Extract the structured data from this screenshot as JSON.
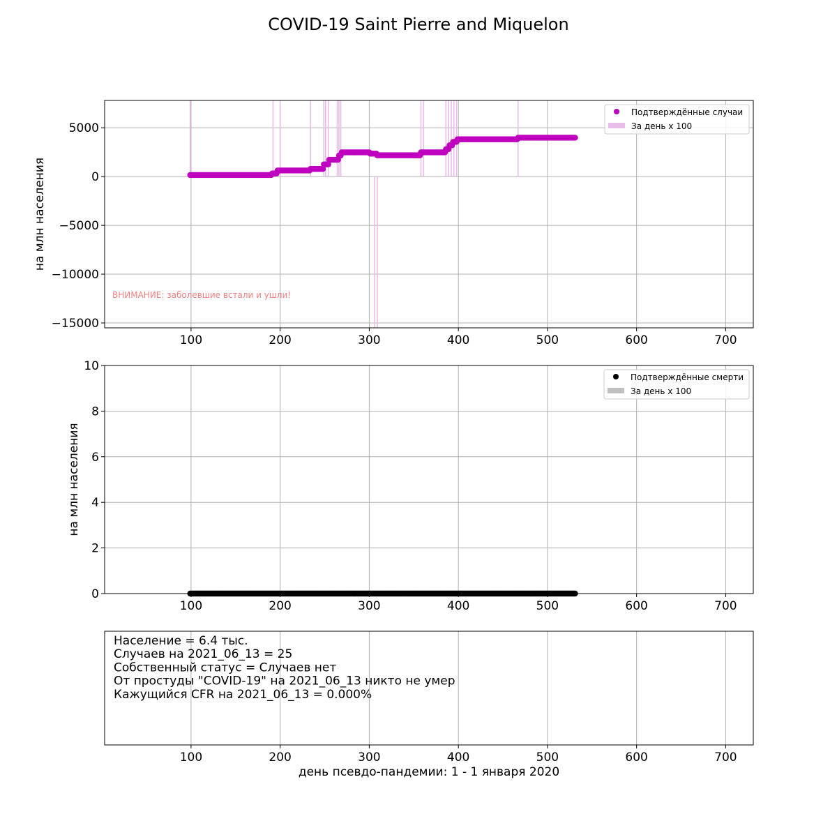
{
  "figure": {
    "title": "COVID-19 Saint Pierre and Miquelon",
    "xlabel": "день псевдо-пандемии: 1 - 1 января 2020"
  },
  "colors": {
    "cases": "#bf00bf",
    "cases_daily": "#e8bde8",
    "deaths": "#000000",
    "deaths_daily": "#bfbfbf",
    "warning": "#f08080",
    "grid": "#b0b0b0"
  },
  "chart_data": [
    {
      "type": "scatter",
      "ylabel": "на млн населения",
      "xlim": [
        3,
        731
      ],
      "ylim": [
        -15500,
        7800
      ],
      "xticks": [
        100,
        200,
        300,
        400,
        500,
        600,
        700
      ],
      "yticks": [
        5000,
        0,
        -5000,
        -10000,
        -15000
      ],
      "ytick_labels": [
        "5000",
        "0",
        "−5000",
        "−10000",
        "−15000"
      ],
      "grid": true,
      "legend_position": "top-right",
      "annotation": "ВНИМАНИЕ: заболевшие встали и ушли!",
      "series": [
        {
          "name": "Подтверждённые случаи",
          "kind": "points",
          "steps": [
            {
              "from": 99,
              "to": 190,
              "y": 160
            },
            {
              "from": 191,
              "to": 196,
              "y": 320
            },
            {
              "from": 197,
              "to": 233,
              "y": 620
            },
            {
              "from": 234,
              "to": 248,
              "y": 780
            },
            {
              "from": 249,
              "to": 254,
              "y": 1250
            },
            {
              "from": 255,
              "to": 265,
              "y": 1720
            },
            {
              "from": 266,
              "to": 268,
              "y": 2150
            },
            {
              "from": 269,
              "to": 300,
              "y": 2480
            },
            {
              "from": 301,
              "to": 308,
              "y": 2350
            },
            {
              "from": 309,
              "to": 357,
              "y": 2180
            },
            {
              "from": 358,
              "to": 385,
              "y": 2480
            },
            {
              "from": 386,
              "to": 389,
              "y": 2800
            },
            {
              "from": 390,
              "to": 393,
              "y": 3200
            },
            {
              "from": 394,
              "to": 398,
              "y": 3550
            },
            {
              "from": 399,
              "to": 466,
              "y": 3820
            },
            {
              "from": 467,
              "to": 531,
              "y": 3980
            }
          ]
        },
        {
          "name": "За день x 100",
          "kind": "daily-bars",
          "bars": [
            {
              "x": 99,
              "y": 7800
            },
            {
              "x": 192,
              "y": 7800
            },
            {
              "x": 200,
              "y": 7800
            },
            {
              "x": 234,
              "y": 7800
            },
            {
              "x": 249,
              "y": 7800
            },
            {
              "x": 251,
              "y": 7800
            },
            {
              "x": 254,
              "y": 7800
            },
            {
              "x": 264,
              "y": 7800
            },
            {
              "x": 266,
              "y": 7800
            },
            {
              "x": 268,
              "y": 7800
            },
            {
              "x": 306,
              "y": -15500
            },
            {
              "x": 309,
              "y": -15500
            },
            {
              "x": 358,
              "y": 7800
            },
            {
              "x": 361,
              "y": 7800
            },
            {
              "x": 386,
              "y": 7800
            },
            {
              "x": 389,
              "y": 7800
            },
            {
              "x": 392,
              "y": 7800
            },
            {
              "x": 395,
              "y": 7800
            },
            {
              "x": 398,
              "y": 7800
            },
            {
              "x": 467,
              "y": 7800
            }
          ]
        }
      ]
    },
    {
      "type": "scatter",
      "ylabel": "на млн населения",
      "xlim": [
        3,
        731
      ],
      "ylim": [
        0,
        10
      ],
      "xticks": [
        100,
        200,
        300,
        400,
        500,
        600,
        700
      ],
      "yticks": [
        0,
        2,
        4,
        6,
        8,
        10
      ],
      "ytick_labels": [
        "0",
        "2",
        "4",
        "6",
        "8",
        "10"
      ],
      "grid": true,
      "legend_position": "top-right",
      "series": [
        {
          "name": "Подтверждённые смерти",
          "kind": "points",
          "steps": [
            {
              "from": 99,
              "to": 531,
              "y": 0
            }
          ]
        },
        {
          "name": "За день x 100",
          "kind": "daily-bars",
          "bars": []
        }
      ]
    },
    {
      "type": "table",
      "xlim": [
        3,
        731
      ],
      "xticks": [
        100,
        200,
        300,
        400,
        500,
        600,
        700
      ],
      "grid": true,
      "lines": [
        "Население = 6.4 тыс.",
        "Случаев на 2021_06_13 = 25",
        "Собственный статус = Случаев нет",
        "От простуды \"COVID-19\" на 2021_06_13 никто не умер",
        "Кажущийся CFR на 2021_06_13 = 0.000%"
      ]
    }
  ]
}
